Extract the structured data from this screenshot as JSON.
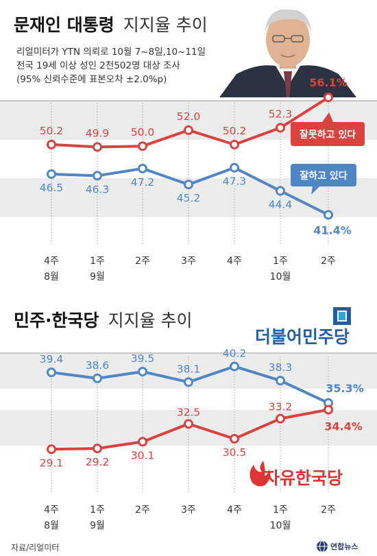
{
  "source": "자료/리얼미터",
  "agency": "연합뉴스",
  "colors": {
    "red": "#d9423f",
    "blue": "#4e86c6",
    "band": "#ececec"
  },
  "chart_data": [
    {
      "type": "line",
      "title_bold": "문재인 대통령",
      "title_light": "지지율 추이",
      "subtitle_lines": [
        "리얼미터가 YTN 의뢰로 10월 7~8일,10~11일",
        "전국 19세 이상 성인 2천502명 대상 조사",
        "(95% 신뢰수준에 표본오차 ±2.0%p)"
      ],
      "categories": [
        {
          "week": "4주",
          "month": "8월"
        },
        {
          "week": "1주",
          "month": "9월"
        },
        {
          "week": "2주",
          "month": ""
        },
        {
          "week": "3주",
          "month": ""
        },
        {
          "week": "4주",
          "month": ""
        },
        {
          "week": "1주",
          "month": "10월"
        },
        {
          "week": "2주",
          "month": ""
        }
      ],
      "ylim": [
        38,
        58
      ],
      "series": [
        {
          "name": "잘못하고 있다",
          "color": "#d9423f",
          "values": [
            50.2,
            49.9,
            50.0,
            52.0,
            50.2,
            52.3,
            56.1
          ],
          "labels": [
            "50.2",
            "49.9",
            "50.0",
            "52.0",
            "50.2",
            "52.3",
            "56.1%"
          ]
        },
        {
          "name": "잘하고 있다",
          "color": "#4e86c6",
          "values": [
            46.5,
            46.3,
            47.2,
            45.2,
            47.3,
            44.4,
            41.4
          ],
          "labels": [
            "46.5",
            "46.3",
            "47.2",
            "45.2",
            "47.3",
            "44.4",
            "41.4%"
          ]
        }
      ],
      "legend": "callouts"
    },
    {
      "type": "line",
      "title_bold": "민주·한국당",
      "title_light": "지지율 추이",
      "categories": [
        {
          "week": "4주",
          "month": "8월"
        },
        {
          "week": "1주",
          "month": "9월"
        },
        {
          "week": "2주",
          "month": ""
        },
        {
          "week": "3주",
          "month": ""
        },
        {
          "week": "4주",
          "month": ""
        },
        {
          "week": "1주",
          "month": "10월"
        },
        {
          "week": "2주",
          "month": ""
        }
      ],
      "ylim": [
        26,
        43
      ],
      "series": [
        {
          "name": "더불어민주당",
          "color": "#4e86c6",
          "values": [
            39.4,
            38.6,
            39.5,
            38.1,
            40.2,
            38.3,
            35.3
          ],
          "labels": [
            "39.4",
            "38.6",
            "39.5",
            "38.1",
            "40.2",
            "38.3",
            "35.3%"
          ]
        },
        {
          "name": "자유한국당",
          "color": "#d9423f",
          "values": [
            29.1,
            29.2,
            30.1,
            32.5,
            30.5,
            33.2,
            34.4
          ],
          "labels": [
            "29.1",
            "29.2",
            "30.1",
            "32.5",
            "30.5",
            "33.2",
            "34.4%"
          ]
        }
      ],
      "legend": "party logos"
    }
  ]
}
